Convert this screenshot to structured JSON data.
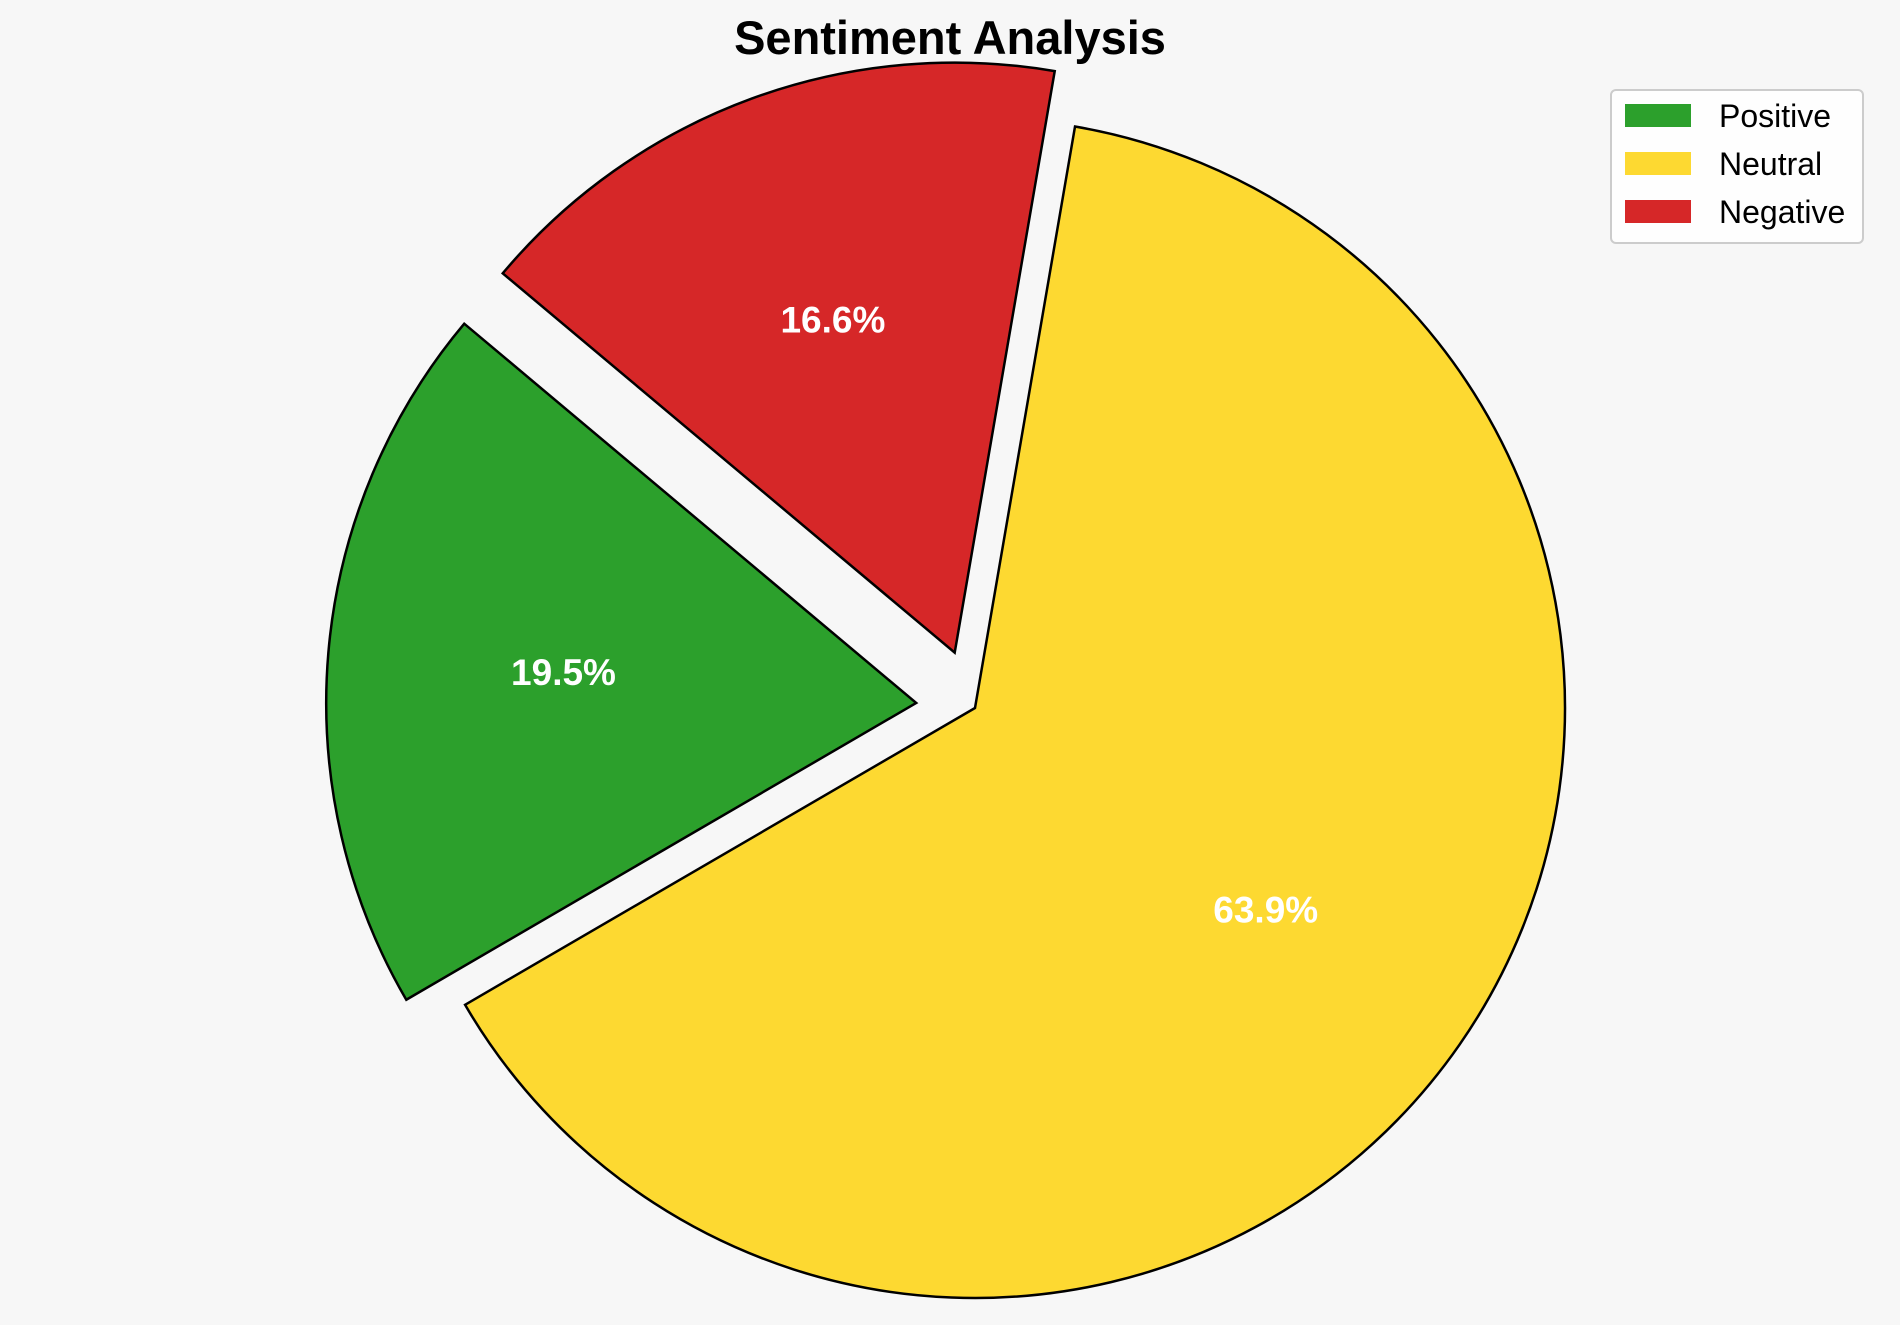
{
  "chart_data": {
    "type": "pie",
    "title": "Sentiment Analysis",
    "slices": [
      {
        "name": "Positive",
        "value": 19.5,
        "label": "19.5%",
        "color": "#2ca02c",
        "exploded": true
      },
      {
        "name": "Neutral",
        "value": 63.9,
        "label": "63.9%",
        "color": "#fdd931",
        "exploded": false
      },
      {
        "name": "Negative",
        "value": 16.6,
        "label": "16.6%",
        "color": "#d62728",
        "exploded": true
      }
    ],
    "legend": {
      "placement": "top-right",
      "entries": [
        "Positive",
        "Neutral",
        "Negative"
      ]
    },
    "label_color": "#ffffff",
    "edge_color": "#000000"
  }
}
